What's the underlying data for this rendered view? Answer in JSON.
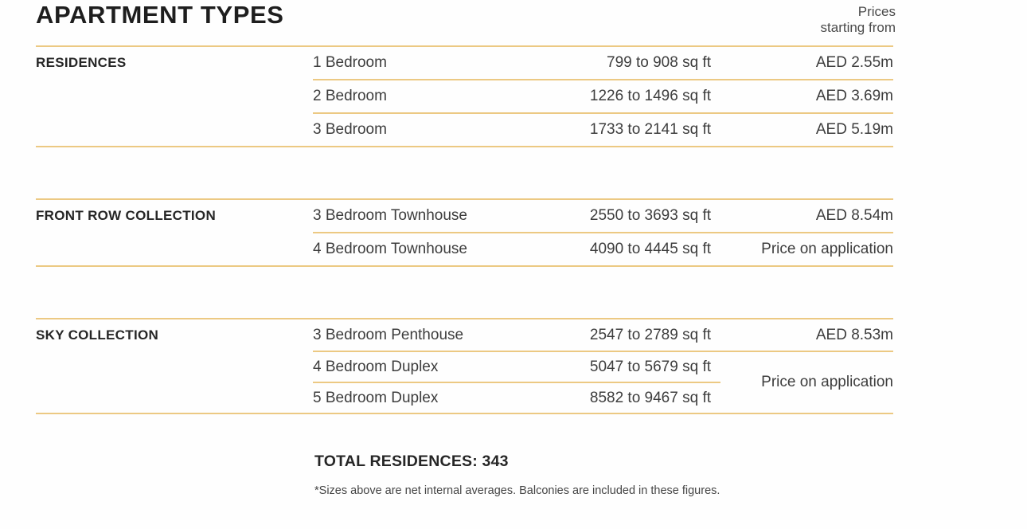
{
  "page": {
    "title": "APARTMENT TYPES",
    "price_header": {
      "line1": "Prices",
      "line2": "starting from"
    },
    "total": "TOTAL RESIDENCES: 343",
    "footnote": "*Sizes above are net internal averages. Balconies are included in these figures.",
    "accent_color": "#ECC983"
  },
  "sections": [
    {
      "label": "RESIDENCES",
      "rows": [
        {
          "type": "1 Bedroom",
          "size": "799 to 908 sq ft",
          "price": "AED 2.55m"
        },
        {
          "type": "2 Bedroom",
          "size": "1226 to 1496 sq ft",
          "price": "AED 3.69m"
        },
        {
          "type": "3 Bedroom",
          "size": "1733 to 2141 sq ft",
          "price": "AED 5.19m"
        }
      ]
    },
    {
      "label": "FRONT ROW COLLECTION",
      "rows": [
        {
          "type": "3 Bedroom Townhouse",
          "size": "2550 to 3693 sq ft",
          "price": "AED 8.54m"
        },
        {
          "type": "4 Bedroom Townhouse",
          "size": "4090 to 4445 sq ft",
          "price": "Price on application"
        }
      ]
    },
    {
      "label": "SKY COLLECTION",
      "rows": [
        {
          "type": "3 Bedroom Penthouse",
          "size": "2547 to 2789 sq ft",
          "price": "AED 8.53m"
        },
        {
          "type": "4 Bedroom Duplex",
          "size": "5047 to 5679 sq ft",
          "price": "Price on application"
        },
        {
          "type": "5 Bedroom Duplex",
          "size": "8582 to 9467 sq ft",
          "price": ""
        }
      ]
    }
  ]
}
